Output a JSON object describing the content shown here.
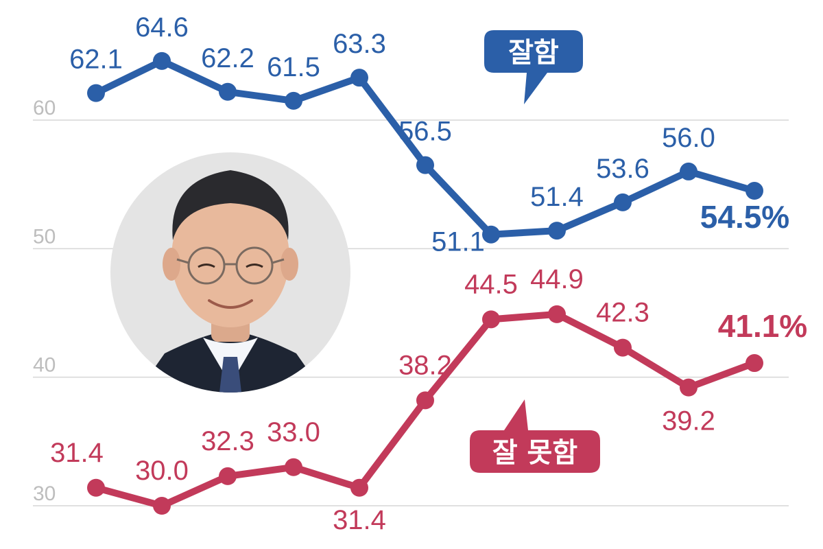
{
  "chart_data": {
    "type": "line",
    "ylim": [
      30,
      60
    ],
    "yticks": [
      "30",
      "40",
      "50",
      "60"
    ],
    "grid": true,
    "series": [
      {
        "name": "잘함",
        "color": "#2b5fa8",
        "values": [
          62.1,
          64.6,
          62.2,
          61.5,
          63.3,
          56.5,
          51.1,
          51.4,
          53.6,
          56.0,
          54.5
        ],
        "labels": [
          "62.1",
          "64.6",
          "62.2",
          "61.5",
          "63.3",
          "56.5",
          "51.1",
          "51.4",
          "53.6",
          "56.0",
          "54.5%"
        ]
      },
      {
        "name": "잘 못함",
        "color": "#c23a5a",
        "values": [
          31.4,
          30.0,
          32.3,
          33.0,
          31.4,
          38.2,
          44.5,
          44.9,
          42.3,
          39.2,
          41.1
        ],
        "labels": [
          "31.4",
          "30.0",
          "32.3",
          "33.0",
          "31.4",
          "38.2",
          "44.5",
          "44.9",
          "42.3",
          "39.2",
          "41.1%"
        ]
      }
    ]
  },
  "colors": {
    "grid": "#d6d6d6",
    "tick": "#bdbdbd",
    "photo_bg": "#e4e4e4"
  },
  "photo": {
    "description_icon": "person-portrait-icon"
  }
}
